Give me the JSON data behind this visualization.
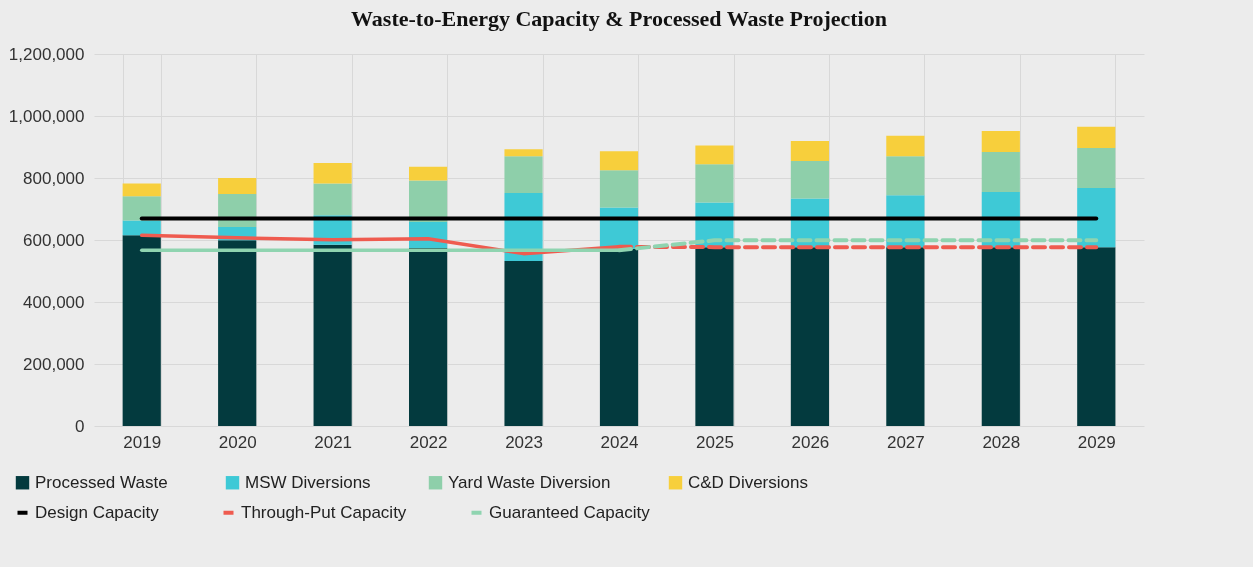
{
  "chart_data": {
    "type": "bar",
    "title": "Waste-to-Energy Capacity & Processed Waste Projection",
    "categories": [
      "2019",
      "2020",
      "2021",
      "2022",
      "2023",
      "2024",
      "2025",
      "2026",
      "2027",
      "2028",
      "2029"
    ],
    "stacked": true,
    "series": [
      {
        "name": "Processed Waste",
        "color": "#033a3e",
        "values": [
          615000,
          599000,
          585000,
          574000,
          532000,
          572000,
          577000,
          577000,
          577000,
          577000,
          577000
        ]
      },
      {
        "name": "MSW Diversions",
        "color": "#3ec9d6",
        "values": [
          48000,
          43000,
          95000,
          84000,
          220000,
          133000,
          144000,
          157000,
          167000,
          178000,
          191000
        ]
      },
      {
        "name": "Yard Waste Diversion",
        "color": "#8ecfaa",
        "values": [
          78000,
          106000,
          102000,
          134000,
          118000,
          120000,
          123000,
          121000,
          126000,
          129000,
          129000
        ]
      },
      {
        "name": "C&D Diversions",
        "color": "#f7cf3c",
        "values": [
          41000,
          52000,
          66000,
          44000,
          23000,
          61000,
          61000,
          64000,
          66000,
          68000,
          68000
        ]
      },
      {
        "name": "Design Capacity",
        "type": "line",
        "color": "#000000",
        "line_style": "solid",
        "values": [
          669000,
          669000,
          669000,
          669000,
          669000,
          669000,
          669000,
          669000,
          669000,
          669000,
          669000
        ]
      },
      {
        "name": "Through-Put Capacity",
        "type": "line",
        "color": "#ef5b4f",
        "line_style": "dashed",
        "values": [
          null,
          null,
          null,
          null,
          null,
          578000,
          577000,
          577000,
          577000,
          577000,
          577000
        ]
      },
      {
        "name": "Guaranteed Capacity",
        "type": "line",
        "color": "#8fd4b0",
        "line_style": "dashed",
        "values": [
          null,
          null,
          null,
          null,
          null,
          567000,
          599000,
          599000,
          599000,
          599000,
          599000
        ]
      },
      {
        "type": "line",
        "color": "#ef5b4f",
        "line_style": "solid",
        "values": [
          615000,
          607000,
          601000,
          604000,
          556000,
          578000,
          null,
          null,
          null,
          null,
          null
        ]
      },
      {
        "type": "line",
        "color": "#8fd4b0",
        "line_style": "solid",
        "values": [
          567000,
          567000,
          567000,
          567000,
          567000,
          567000,
          null,
          null,
          null,
          null,
          null
        ]
      }
    ],
    "ylim": [
      0,
      1200000
    ],
    "yticks": [
      0,
      {
        "value": 200000,
        "label": "200,000"
      },
      {
        "value": 400000,
        "label": "400,000"
      },
      {
        "value": 600000,
        "label": "600,000"
      },
      {
        "value": 800000,
        "label": "800,000"
      },
      {
        "value": 1000000,
        "label": "1,000,000"
      },
      {
        "value": 1200000,
        "label": "1,200,000"
      }
    ],
    "grid": true,
    "legend": "bottom"
  }
}
